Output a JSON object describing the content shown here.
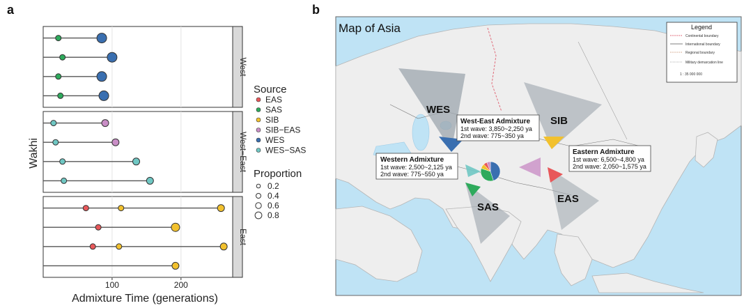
{
  "panel_labels": {
    "a": "a",
    "b": "b"
  },
  "chart_data": {
    "type": "scatter",
    "xlabel": "Admixture Time (generations)",
    "ylabel": "Wakhi",
    "xlim": [
      0,
      275
    ],
    "xticks": [
      100,
      200
    ],
    "facets": [
      {
        "label": "West",
        "rows": [
          {
            "points": [
              {
                "x": 22,
                "source": "SAS",
                "p": 0.2
              },
              {
                "x": 85,
                "source": "WES",
                "p": 0.8
              }
            ]
          },
          {
            "points": [
              {
                "x": 28,
                "source": "SAS",
                "p": 0.2
              },
              {
                "x": 100,
                "source": "WES",
                "p": 0.8
              }
            ]
          },
          {
            "points": [
              {
                "x": 22,
                "source": "SAS",
                "p": 0.2
              },
              {
                "x": 85,
                "source": "WES",
                "p": 0.8
              }
            ]
          },
          {
            "points": [
              {
                "x": 25,
                "source": "SAS",
                "p": 0.2
              },
              {
                "x": 88,
                "source": "WES",
                "p": 0.8
              }
            ]
          }
        ]
      },
      {
        "label": "West−East",
        "rows": [
          {
            "points": [
              {
                "x": 15,
                "source": "WES-SAS",
                "p": 0.2
              },
              {
                "x": 90,
                "source": "SIB-EAS",
                "p": 0.4
              }
            ]
          },
          {
            "points": [
              {
                "x": 18,
                "source": "WES-SAS",
                "p": 0.2
              },
              {
                "x": 105,
                "source": "SIB-EAS",
                "p": 0.4
              }
            ]
          },
          {
            "points": [
              {
                "x": 28,
                "source": "WES-SAS",
                "p": 0.2
              },
              {
                "x": 135,
                "source": "WES-SAS",
                "p": 0.4
              }
            ]
          },
          {
            "points": [
              {
                "x": 30,
                "source": "WES-SAS",
                "p": 0.2
              },
              {
                "x": 155,
                "source": "WES-SAS",
                "p": 0.4
              }
            ]
          }
        ]
      },
      {
        "label": "East",
        "rows": [
          {
            "points": [
              {
                "x": 62,
                "source": "EAS",
                "p": 0.2
              },
              {
                "x": 113,
                "source": "SIB",
                "p": 0.2
              },
              {
                "x": 258,
                "source": "SIB",
                "p": 0.4
              }
            ]
          },
          {
            "points": [
              {
                "x": 80,
                "source": "EAS",
                "p": 0.2
              },
              {
                "x": 192,
                "source": "SIB",
                "p": 0.6
              }
            ]
          },
          {
            "points": [
              {
                "x": 72,
                "source": "EAS",
                "p": 0.2
              },
              {
                "x": 110,
                "source": "SIB",
                "p": 0.2
              },
              {
                "x": 262,
                "source": "SIB",
                "p": 0.4
              }
            ]
          },
          {
            "points": [
              {
                "x": 192,
                "source": "SIB",
                "p": 0.4
              }
            ]
          }
        ]
      }
    ],
    "legend_source": {
      "title": "Source",
      "items": [
        {
          "name": "EAS",
          "color": "#e8585a"
        },
        {
          "name": "SAS",
          "color": "#2eaa5c"
        },
        {
          "name": "SIB",
          "color": "#f2c12e"
        },
        {
          "name": "SIB−EAS",
          "color": "#c98ec6"
        },
        {
          "name": "WES",
          "color": "#3a6fb0"
        },
        {
          "name": "WES−SAS",
          "color": "#6fc7c3"
        }
      ]
    },
    "legend_proportion": {
      "title": "Proportion",
      "values": [
        0.2,
        0.4,
        0.6,
        0.8
      ]
    }
  },
  "map": {
    "title": "Map of Asia",
    "legend": {
      "title": "Legend",
      "items": [
        "Continental boundary",
        "International boundary",
        "Regional boundary",
        "Military demarcation line"
      ],
      "scale": "1 : 35 000 000"
    },
    "arrows": [
      {
        "label": "WES",
        "color": "#3a6fb0"
      },
      {
        "label": "SIB",
        "color": "#f2c12e"
      },
      {
        "label": "EAS",
        "color": "#e8585a"
      },
      {
        "label": "SAS",
        "color": "#2eaa5c"
      }
    ],
    "boxes": {
      "west_east": {
        "title": "West-East Admixture",
        "line1": "1st wave: 3,850~2,250 ya",
        "line2": "2nd wave: 775~350 ya"
      },
      "western": {
        "title": "Western Admixture",
        "line1": "1st wave: 2,500~2,125 ya",
        "line2": "2nd wave: 775~550 ya"
      },
      "eastern": {
        "title": "Eastern Admixture",
        "line1": "1st wave: 6,500~4,800 ya",
        "line2": "2nd wave: 2,050~1,575 ya"
      }
    },
    "pie": [
      {
        "source": "WES",
        "value": 0.45
      },
      {
        "source": "SAS",
        "value": 0.35
      },
      {
        "source": "SIB",
        "value": 0.08
      },
      {
        "source": "EAS",
        "value": 0.06
      },
      {
        "source": "SIB-EAS",
        "value": 0.06
      }
    ],
    "colors": {
      "ocean": "#bfe3f5",
      "land": "#eeeeee",
      "border": "#b5b5b5"
    }
  }
}
